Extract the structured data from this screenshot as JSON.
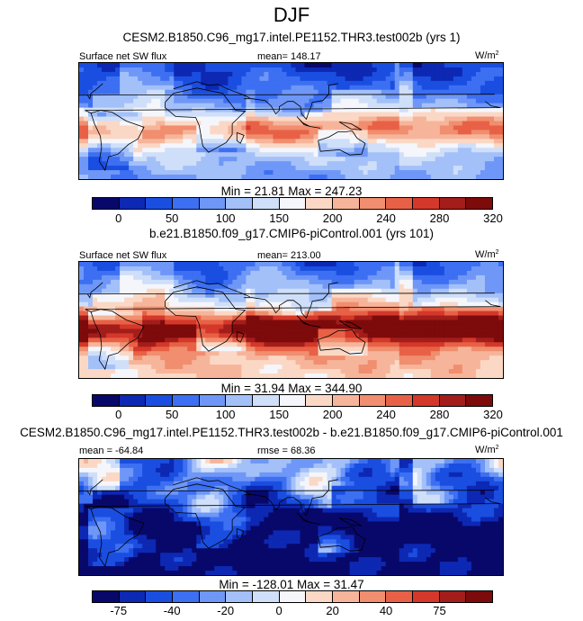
{
  "title": "DJF",
  "panels": [
    {
      "subtitle": "CESM2.B1850.C96_mg17.intel.PE1152.THR3.test002b (yrs 1)",
      "left_label": "Surface net SW flux",
      "center_label": "mean= 148.17",
      "units": "W/m",
      "units_sup": "2",
      "minmax": "Min =  21.81  Max = 247.23",
      "cbar_ticks": [
        "0",
        "50",
        "100",
        "150",
        "200",
        "240",
        "280",
        "320"
      ],
      "colors": [
        "#08086b",
        "#0d28b3",
        "#1a4ee0",
        "#3d6ff2",
        "#6e97f7",
        "#a3c0f9",
        "#cfdff9",
        "#f4f6fb",
        "#fbd8c5",
        "#f6b59b",
        "#f08e6f",
        "#e86146",
        "#d4382a",
        "#a31d1b",
        "#7d0b0b"
      ],
      "field": {
        "base": 140,
        "tropic": 95,
        "north": -90,
        "south": -65,
        "ocean_bonus": 15,
        "land": -30,
        "contrast_land": -10
      }
    },
    {
      "subtitle": "b.e21.B1850.f09_g17.CMIP6-piControl.001 (yrs 101)",
      "left_label": "Surface net SW flux",
      "center_label": "mean= 213.00",
      "units": "W/m",
      "units_sup": "2",
      "minmax": "Min =  31.94  Max = 344.90",
      "cbar_ticks": [
        "0",
        "50",
        "100",
        "150",
        "200",
        "240",
        "280",
        "320"
      ],
      "colors": [
        "#08086b",
        "#0d28b3",
        "#1a4ee0",
        "#3d6ff2",
        "#6e97f7",
        "#a3c0f9",
        "#cfdff9",
        "#f4f6fb",
        "#fbd8c5",
        "#f6b59b",
        "#f08e6f",
        "#e86146",
        "#d4382a",
        "#a31d1b",
        "#7d0b0b"
      ],
      "field": {
        "base": 205,
        "tropic": 120,
        "north": -135,
        "south": -40,
        "ocean_bonus": 25,
        "land": -25,
        "contrast_land": -20
      }
    },
    {
      "subtitle": "CESM2.B1850.C96_mg17.intel.PE1152.THR3.test002b - b.e21.B1850.f09_g17.CMIP6-piControl.001",
      "left_label": "mean = -64.84",
      "center_label": "rmse =  68.36",
      "units": "W/m",
      "units_sup": "2",
      "minmax": "Min = -128.01  Max =  31.47",
      "cbar_ticks": [
        "-75",
        "-40",
        "-20",
        "0",
        "20",
        "40",
        "75"
      ],
      "colors": [
        "#08086b",
        "#0d28b3",
        "#1a4ee0",
        "#3d6ff2",
        "#6e97f7",
        "#a3c0f9",
        "#cfdff9",
        "#f4f6fb",
        "#fbd8c5",
        "#f6b59b",
        "#f08e6f",
        "#e86146",
        "#d4382a",
        "#a31d1b",
        "#7d0b0b"
      ],
      "field": {
        "base": -62,
        "tropic": -15,
        "north": 35,
        "south": -20,
        "ocean_bonus": -10,
        "land": 12,
        "contrast_land": 20
      }
    }
  ]
}
